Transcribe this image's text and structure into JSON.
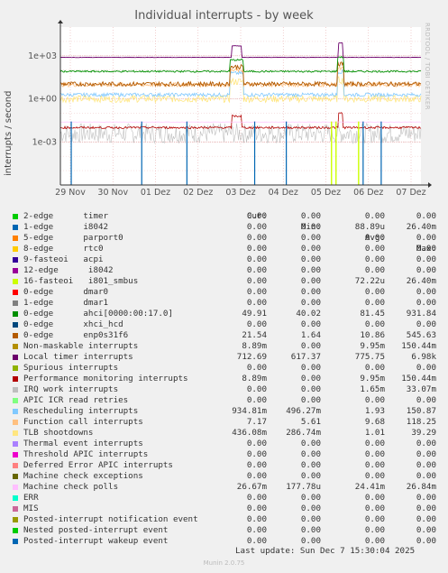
{
  "chart_data": {
    "type": "line",
    "title": "Individual interrupts - by week",
    "ylabel": "interrupts / second",
    "yscale": "log",
    "ylim": [
      1e-06,
      100000.0
    ],
    "y_ticks": [
      {
        "label": "1e+03",
        "value": 1000
      },
      {
        "label": "1e+00",
        "value": 1
      },
      {
        "label": "1e-03",
        "value": 0.001
      }
    ],
    "x_ticks": [
      "29 Nov",
      "30 Nov",
      "01 Dez",
      "02 Dez",
      "03 Dez",
      "04 Dez",
      "05 Dez",
      "06 Dez",
      "07 Dez"
    ],
    "grid": true,
    "side_text": "RRDTOOL / TOBI OETIKER",
    "legend_headers": [
      "Cur:",
      "Min:",
      "Avg:",
      "Max:"
    ],
    "series": [
      {
        "name": "2-edge      timer",
        "color": "#00cc00",
        "cur": "0.00",
        "min": "0.00",
        "avg": "0.00",
        "max": "0.00"
      },
      {
        "name": "1-edge      i8042",
        "color": "#0066b3",
        "cur": "0.00",
        "min": "0.00",
        "avg": "88.89u",
        "max": "26.40m"
      },
      {
        "name": "5-edge      parport0",
        "color": "#ff8000",
        "cur": "0.00",
        "min": "0.00",
        "avg": "0.00",
        "max": "0.00"
      },
      {
        "name": "8-edge      rtc0",
        "color": "#ffcc00",
        "cur": "0.00",
        "min": "0.00",
        "avg": "0.00",
        "max": "0.00"
      },
      {
        "name": "9-fasteoi   acpi",
        "color": "#330099",
        "cur": "0.00",
        "min": "0.00",
        "avg": "0.00",
        "max": "0.00"
      },
      {
        "name": "12-edge      i8042",
        "color": "#990099",
        "cur": "0.00",
        "min": "0.00",
        "avg": "0.00",
        "max": "0.00"
      },
      {
        "name": "16-fasteoi   i801_smbus",
        "color": "#ccff00",
        "cur": "0.00",
        "min": "0.00",
        "avg": "72.22u",
        "max": "26.40m"
      },
      {
        "name": "0-edge      dmar0",
        "color": "#ff0000",
        "cur": "0.00",
        "min": "0.00",
        "avg": "0.00",
        "max": "0.00"
      },
      {
        "name": "1-edge      dmar1",
        "color": "#808080",
        "cur": "0.00",
        "min": "0.00",
        "avg": "0.00",
        "max": "0.00"
      },
      {
        "name": "0-edge      ahci[0000:00:17.0]",
        "color": "#008f00",
        "cur": "49.91",
        "min": "40.02",
        "avg": "81.45",
        "max": "931.84"
      },
      {
        "name": "0-edge      xhci_hcd",
        "color": "#00487d",
        "cur": "0.00",
        "min": "0.00",
        "avg": "0.00",
        "max": "0.00"
      },
      {
        "name": "0-edge      enp0s31f6",
        "color": "#b35a00",
        "cur": "21.54",
        "min": "1.64",
        "avg": "10.86",
        "max": "545.63"
      },
      {
        "name": "Non-maskable interrupts",
        "color": "#b38f00",
        "cur": "8.89m",
        "min": "0.00",
        "avg": "9.95m",
        "max": "150.44m"
      },
      {
        "name": "Local timer interrupts",
        "color": "#6b006b",
        "cur": "712.69",
        "min": "617.37",
        "avg": "775.75",
        "max": "6.98k"
      },
      {
        "name": "Spurious interrupts",
        "color": "#8fb300",
        "cur": "0.00",
        "min": "0.00",
        "avg": "0.00",
        "max": "0.00"
      },
      {
        "name": "Performance monitoring interrupts",
        "color": "#b30000",
        "cur": "8.89m",
        "min": "0.00",
        "avg": "9.95m",
        "max": "150.44m"
      },
      {
        "name": "IRQ work interrupts",
        "color": "#bebebe",
        "cur": "0.00",
        "min": "0.00",
        "avg": "1.65m",
        "max": "33.07m"
      },
      {
        "name": "APIC ICR read retries",
        "color": "#80ff80",
        "cur": "0.00",
        "min": "0.00",
        "avg": "0.00",
        "max": "0.00"
      },
      {
        "name": "Rescheduling interrupts",
        "color": "#80c9ff",
        "cur": "934.81m",
        "min": "496.27m",
        "avg": "1.93",
        "max": "150.87"
      },
      {
        "name": "Function call interrupts",
        "color": "#ffc080",
        "cur": "7.17",
        "min": "5.61",
        "avg": "9.68",
        "max": "118.25"
      },
      {
        "name": "TLB shootdowns",
        "color": "#ffe680",
        "cur": "436.08m",
        "min": "286.74m",
        "avg": "1.01",
        "max": "39.29"
      },
      {
        "name": "Thermal event interrupts",
        "color": "#aa80ff",
        "cur": "0.00",
        "min": "0.00",
        "avg": "0.00",
        "max": "0.00"
      },
      {
        "name": "Threshold APIC interrupts",
        "color": "#ee00cc",
        "cur": "0.00",
        "min": "0.00",
        "avg": "0.00",
        "max": "0.00"
      },
      {
        "name": "Deferred Error APIC interrupts",
        "color": "#ff8080",
        "cur": "0.00",
        "min": "0.00",
        "avg": "0.00",
        "max": "0.00"
      },
      {
        "name": "Machine check exceptions",
        "color": "#666600",
        "cur": "0.00",
        "min": "0.00",
        "avg": "0.00",
        "max": "0.00"
      },
      {
        "name": "Machine check polls",
        "color": "#ffbfff",
        "cur": "26.67m",
        "min": "177.78u",
        "avg": "24.41m",
        "max": "26.84m"
      },
      {
        "name": "ERR",
        "color": "#00ffcc",
        "cur": "0.00",
        "min": "0.00",
        "avg": "0.00",
        "max": "0.00"
      },
      {
        "name": "MIS",
        "color": "#cc6699",
        "cur": "0.00",
        "min": "0.00",
        "avg": "0.00",
        "max": "0.00"
      },
      {
        "name": "Posted-interrupt notification event",
        "color": "#999900",
        "cur": "0.00",
        "min": "0.00",
        "avg": "0.00",
        "max": "0.00"
      },
      {
        "name": "Nested posted-interrupt event",
        "color": "#00cc00",
        "cur": "0.00",
        "min": "0.00",
        "avg": "0.00",
        "max": "0.00"
      },
      {
        "name": "Posted-interrupt wakeup event",
        "color": "#0066b3",
        "cur": "0.00",
        "min": "0.00",
        "avg": "0.00",
        "max": "0.00"
      }
    ],
    "last_update": "Last update: Sun Dec  7 15:30:04 2025",
    "footer": "Munin 2.0.75"
  }
}
